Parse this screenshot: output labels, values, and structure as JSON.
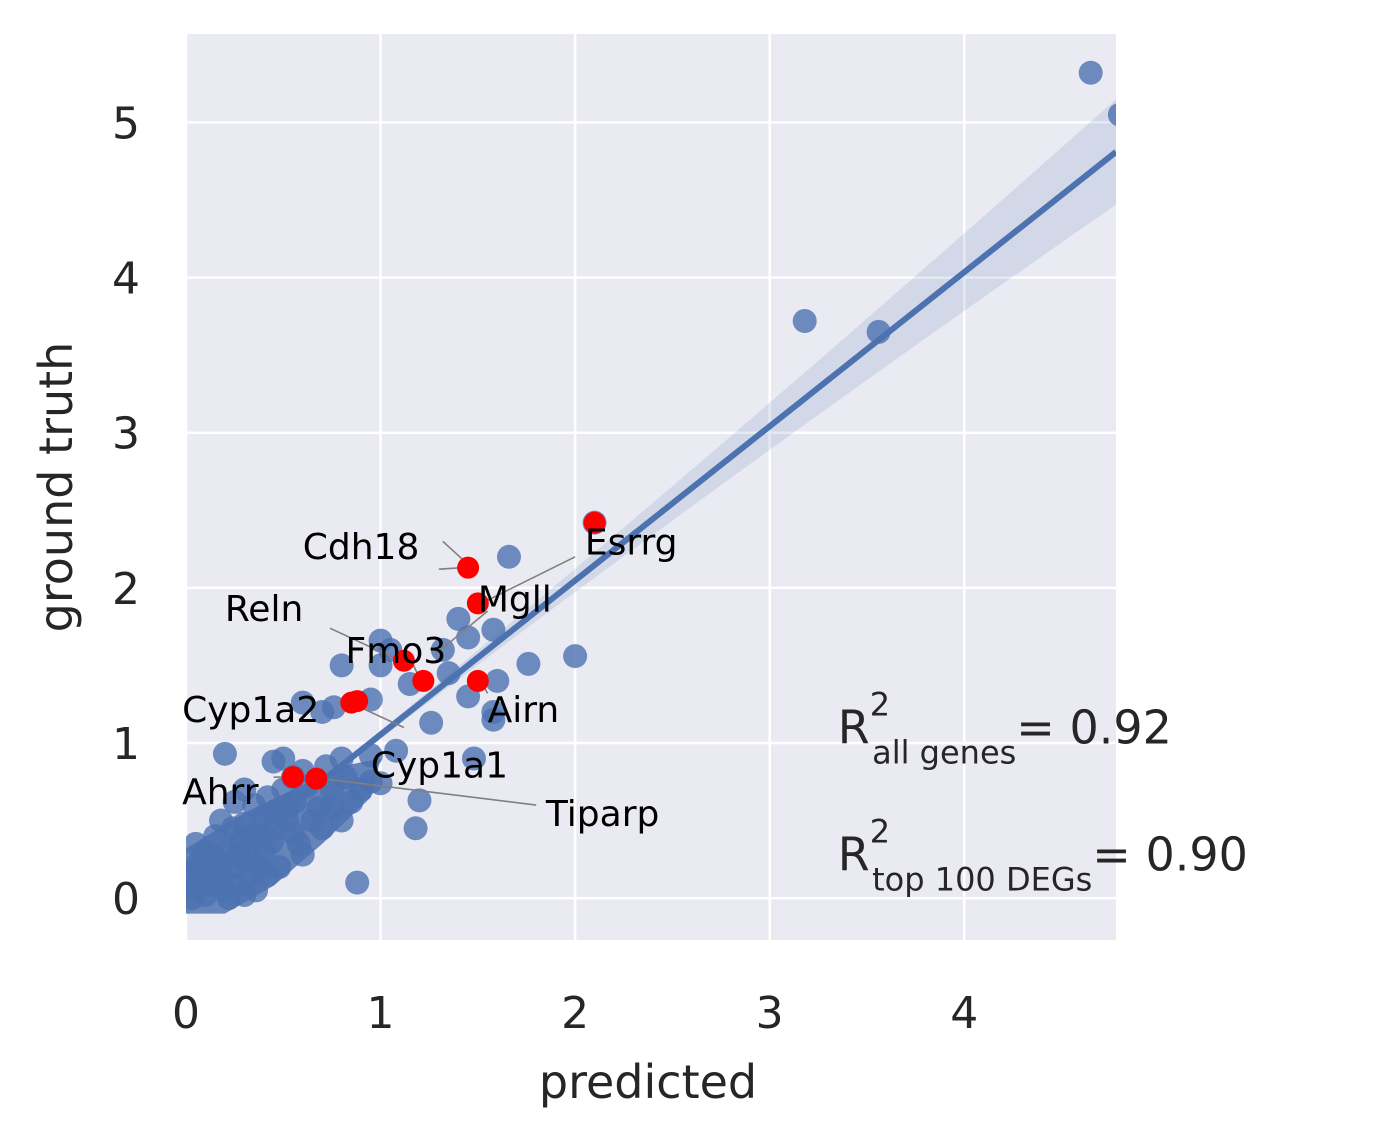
{
  "chart_data": {
    "type": "scatter",
    "xlabel": "predicted",
    "ylabel": "ground truth",
    "xlim": [
      0,
      4.78
    ],
    "ylim": [
      -0.27,
      5.57
    ],
    "xticks": [
      0,
      1,
      2,
      3,
      4
    ],
    "yticks": [
      0,
      1,
      2,
      3,
      4,
      5
    ],
    "grid": true,
    "regression": {
      "x": [
        0,
        4.78
      ],
      "y": [
        0.06,
        4.81
      ],
      "ci_halfwidth_end": 0.32
    },
    "colors": {
      "points": "#4c72b0",
      "highlight": "#ff0000",
      "background": "#eaeaf2",
      "grid": "#ffffff",
      "leader": "#808080"
    },
    "points": [
      {
        "x": 4.65,
        "y": 5.32
      },
      {
        "x": 4.8,
        "y": 5.05
      },
      {
        "x": 3.18,
        "y": 3.72
      },
      {
        "x": 3.56,
        "y": 3.65
      },
      {
        "x": 2.1,
        "y": 2.42
      },
      {
        "x": 1.66,
        "y": 2.2
      },
      {
        "x": 2.0,
        "y": 1.56
      },
      {
        "x": 1.76,
        "y": 1.51
      },
      {
        "x": 1.4,
        "y": 1.8
      },
      {
        "x": 1.58,
        "y": 1.73
      },
      {
        "x": 1.45,
        "y": 1.68
      },
      {
        "x": 1.32,
        "y": 1.6
      },
      {
        "x": 1.0,
        "y": 1.66
      },
      {
        "x": 1.05,
        "y": 1.6
      },
      {
        "x": 1.0,
        "y": 1.5
      },
      {
        "x": 0.8,
        "y": 1.5
      },
      {
        "x": 1.35,
        "y": 1.45
      },
      {
        "x": 1.15,
        "y": 1.38
      },
      {
        "x": 1.45,
        "y": 1.3
      },
      {
        "x": 1.6,
        "y": 1.4
      },
      {
        "x": 1.58,
        "y": 1.2
      },
      {
        "x": 1.58,
        "y": 1.15
      },
      {
        "x": 1.26,
        "y": 1.13
      },
      {
        "x": 0.95,
        "y": 1.28
      },
      {
        "x": 0.7,
        "y": 1.2
      },
      {
        "x": 0.6,
        "y": 1.26
      },
      {
        "x": 0.76,
        "y": 1.23
      },
      {
        "x": 1.48,
        "y": 0.9
      },
      {
        "x": 1.08,
        "y": 0.95
      },
      {
        "x": 0.95,
        "y": 0.92
      },
      {
        "x": 0.8,
        "y": 0.9
      },
      {
        "x": 0.72,
        "y": 0.85
      },
      {
        "x": 0.6,
        "y": 0.82
      },
      {
        "x": 0.45,
        "y": 0.88
      },
      {
        "x": 0.5,
        "y": 0.9
      },
      {
        "x": 0.2,
        "y": 0.93
      },
      {
        "x": 1.2,
        "y": 0.63
      },
      {
        "x": 1.18,
        "y": 0.45
      },
      {
        "x": 0.9,
        "y": 0.7
      },
      {
        "x": 1.0,
        "y": 0.74
      },
      {
        "x": 0.75,
        "y": 0.7
      },
      {
        "x": 0.55,
        "y": 0.78
      },
      {
        "x": 0.62,
        "y": 0.72
      },
      {
        "x": 0.5,
        "y": 0.7
      },
      {
        "x": 0.88,
        "y": 0.1
      },
      {
        "x": 0.3,
        "y": 0.7
      },
      {
        "x": 0.25,
        "y": 0.62
      },
      {
        "x": 0.35,
        "y": 0.6
      },
      {
        "x": 0.42,
        "y": 0.65
      },
      {
        "x": 0.15,
        "y": 0.4
      },
      {
        "x": 0.65,
        "y": 0.5
      },
      {
        "x": 0.7,
        "y": 0.45
      },
      {
        "x": 0.8,
        "y": 0.5
      },
      {
        "x": 0.52,
        "y": 0.5
      },
      {
        "x": 0.58,
        "y": 0.35
      },
      {
        "x": 0.6,
        "y": 0.28
      },
      {
        "x": 0.45,
        "y": 0.45
      },
      {
        "x": 0.48,
        "y": 0.2
      },
      {
        "x": 0.3,
        "y": 0.48
      },
      {
        "x": 0.38,
        "y": 0.38
      },
      {
        "x": 0.32,
        "y": 0.15
      },
      {
        "x": 0.22,
        "y": 0.3
      },
      {
        "x": 0.25,
        "y": 0.2
      },
      {
        "x": 0.28,
        "y": 0.35
      },
      {
        "x": 0.1,
        "y": 0.3
      },
      {
        "x": 0.05,
        "y": 0.35
      },
      {
        "x": 0.12,
        "y": 0.2
      },
      {
        "x": 0.18,
        "y": 0.15
      },
      {
        "x": 0.08,
        "y": 0.1
      },
      {
        "x": 0.06,
        "y": 0.22
      },
      {
        "x": 0.15,
        "y": 0.08
      },
      {
        "x": 0.2,
        "y": 0.05
      },
      {
        "x": 0.22,
        "y": 0.0
      },
      {
        "x": 0.25,
        "y": 0.08
      },
      {
        "x": 0.3,
        "y": 0.02
      },
      {
        "x": 0.33,
        "y": 0.25
      },
      {
        "x": 0.4,
        "y": 0.3
      },
      {
        "x": 0.42,
        "y": 0.15
      },
      {
        "x": 0.36,
        "y": 0.05
      },
      {
        "x": 0.03,
        "y": 0.0
      },
      {
        "x": 0.02,
        "y": 0.15
      },
      {
        "x": 0.04,
        "y": 0.06
      },
      {
        "x": 0.1,
        "y": 0.02
      },
      {
        "x": 0.14,
        "y": 0.27
      },
      {
        "x": 0.52,
        "y": 0.58
      },
      {
        "x": 0.68,
        "y": 0.58
      },
      {
        "x": 0.56,
        "y": 0.62
      },
      {
        "x": 0.46,
        "y": 0.56
      },
      {
        "x": 0.75,
        "y": 0.58
      },
      {
        "x": 0.85,
        "y": 0.62
      },
      {
        "x": 0.95,
        "y": 0.75
      },
      {
        "x": 0.82,
        "y": 0.78
      },
      {
        "x": 0.18,
        "y": 0.5
      },
      {
        "x": 0.24,
        "y": 0.45
      },
      {
        "x": 0.07,
        "y": 0.18
      },
      {
        "x": 0.09,
        "y": 0.26
      },
      {
        "x": 0.12,
        "y": 0.12
      },
      {
        "x": 0.17,
        "y": 0.22
      },
      {
        "x": 0.27,
        "y": 0.27
      },
      {
        "x": 0.35,
        "y": 0.4
      },
      {
        "x": 0.4,
        "y": 0.52
      },
      {
        "x": 0.44,
        "y": 0.36
      },
      {
        "x": 0.38,
        "y": 0.2
      },
      {
        "x": 0.55,
        "y": 0.42
      }
    ],
    "highlighted": [
      {
        "gene": "Cdh18",
        "x": 1.45,
        "y": 2.13,
        "label_x": 0.6,
        "label_y": 2.27
      },
      {
        "gene": "Esrrg",
        "x": 2.1,
        "y": 2.42,
        "label_x": 2.05,
        "label_y": 2.3
      },
      {
        "gene": "Mgll",
        "x": 1.5,
        "y": 1.9,
        "label_x": 1.5,
        "label_y": 1.93
      },
      {
        "gene": "Reln",
        "x": 1.12,
        "y": 1.53,
        "label_x": 0.2,
        "label_y": 1.87
      },
      {
        "gene": "Fmo3",
        "x": 1.22,
        "y": 1.4,
        "label_x": 0.82,
        "label_y": 1.6
      },
      {
        "gene": "Airn",
        "x": 1.5,
        "y": 1.4,
        "label_x": 1.55,
        "label_y": 1.22
      },
      {
        "gene": "Cyp1a2",
        "x": 0.88,
        "y": 1.27,
        "label_x": -0.02,
        "label_y": 1.22
      },
      {
        "gene": "Cyp1a1",
        "x": 0.85,
        "y": 1.26,
        "label_x": 0.95,
        "label_y": 0.86
      },
      {
        "gene": "Ahrr",
        "x": 0.55,
        "y": 0.78,
        "label_x": -0.02,
        "label_y": 0.69
      },
      {
        "gene": "Tiparp",
        "x": 0.67,
        "y": 0.77,
        "label_x": 1.85,
        "label_y": 0.55
      }
    ],
    "leaders": [
      {
        "x1": 1.3,
        "y1": 2.12,
        "x2": 1.42,
        "y2": 2.13
      },
      {
        "x1": 1.32,
        "y1": 2.3,
        "x2": 1.45,
        "y2": 2.15
      },
      {
        "x1": 2.0,
        "y1": 2.2,
        "x2": 1.55,
        "y2": 1.92
      },
      {
        "x1": 1.55,
        "y1": 1.85,
        "x2": 1.28,
        "y2": 1.57
      },
      {
        "x1": 0.74,
        "y1": 1.74,
        "x2": 1.1,
        "y2": 1.53
      },
      {
        "x1": 1.15,
        "y1": 1.55,
        "x2": 1.2,
        "y2": 1.42
      },
      {
        "x1": 1.55,
        "y1": 1.32,
        "x2": 1.52,
        "y2": 1.39
      },
      {
        "x1": 0.78,
        "y1": 1.26,
        "x2": 0.85,
        "y2": 1.27
      },
      {
        "x1": 1.12,
        "y1": 1.1,
        "x2": 0.86,
        "y2": 1.25
      },
      {
        "x1": 0.45,
        "y1": 0.78,
        "x2": 0.53,
        "y2": 0.78
      },
      {
        "x1": 1.8,
        "y1": 0.6,
        "x2": 0.7,
        "y2": 0.77
      }
    ],
    "annotations": [
      {
        "main": "R",
        "sup": "2",
        "sub": "all genes",
        "value": "= 0.92",
        "x": 3.35,
        "y": 1.1
      },
      {
        "main": "R",
        "sup": "2",
        "sub": "top 100 DEGs",
        "value": "= 0.90",
        "x": 3.35,
        "y": 0.28
      }
    ]
  }
}
